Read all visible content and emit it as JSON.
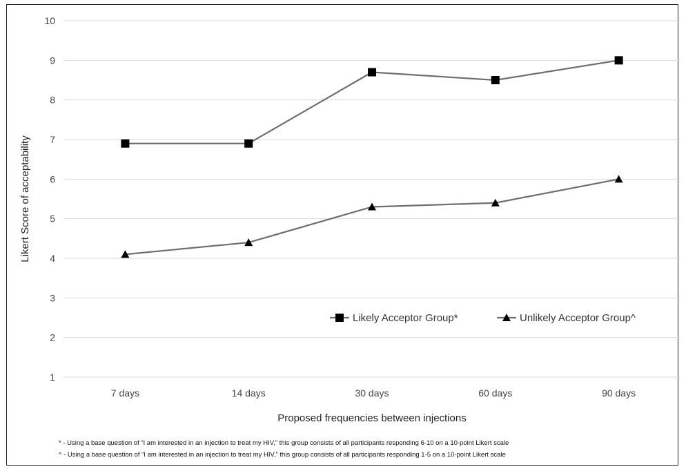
{
  "chart_data": {
    "type": "line",
    "categories": [
      "7 days",
      "14 days",
      "30 days",
      "60 days",
      "90 days"
    ],
    "xlabel": "Proposed frequencies between injections",
    "ylabel": "Likert Score of acceptability",
    "ylim": [
      1,
      10
    ],
    "yticks": [
      "1",
      "2",
      "3",
      "4",
      "5",
      "6",
      "7",
      "8",
      "9",
      "10"
    ],
    "grid": true,
    "legend_position": "lower-right",
    "series": [
      {
        "name": "Likely Acceptor Group*",
        "marker": "square",
        "values": [
          6.9,
          6.9,
          8.7,
          8.5,
          9.0
        ]
      },
      {
        "name": "Unlikely Acceptor Group^",
        "marker": "triangle",
        "values": [
          4.1,
          4.4,
          5.3,
          5.4,
          6.0
        ]
      }
    ],
    "line_color": "#6e6e6e",
    "marker_color": "#000000",
    "grid_color": "#d9d9d9"
  },
  "footnotes": [
    "* - Using a base question of “I am interested in an injection to treat my HIV,” this group consists of all participants responding 6-10 on a 10-point Likert scale",
    "^ - Using a base question of “I am interested in an injection to treat my HIV,” this group consists of all participants responding 1-5 on a 10-point Likert scale"
  ]
}
